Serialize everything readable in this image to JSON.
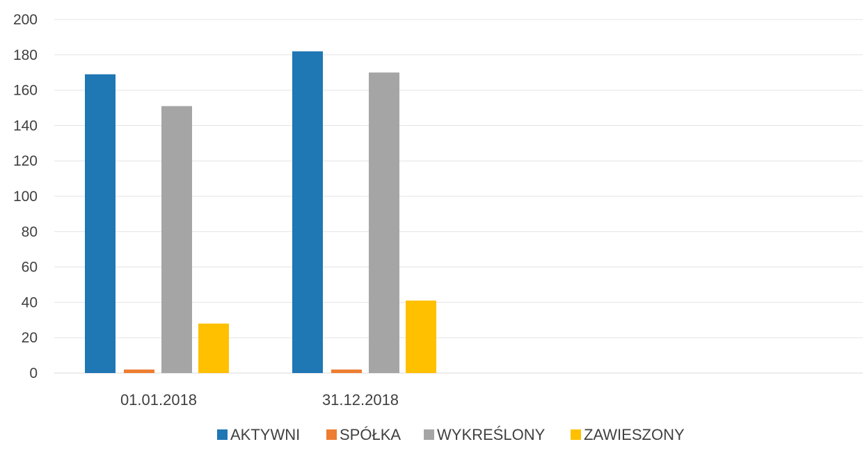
{
  "chart_data": {
    "type": "bar",
    "title": "",
    "xlabel": "",
    "ylabel": "",
    "categories": [
      "01.01.2018",
      "31.12.2018"
    ],
    "series": [
      {
        "name": "AKTYWNI",
        "color": "#1f77b4",
        "values": [
          169,
          182
        ]
      },
      {
        "name": "SPÓŁKA",
        "color": "#ed7d31",
        "values": [
          2,
          2
        ]
      },
      {
        "name": "WYKREŚLONY",
        "color": "#a5a5a5",
        "values": [
          151,
          170
        ]
      },
      {
        "name": "ZAWIESZONY",
        "color": "#ffc000",
        "values": [
          28,
          41
        ]
      }
    ],
    "ylim": [
      0,
      200
    ],
    "yticks": [
      0,
      20,
      40,
      60,
      80,
      100,
      120,
      140,
      160,
      180,
      200
    ],
    "grid": true,
    "legend_position": "bottom"
  }
}
